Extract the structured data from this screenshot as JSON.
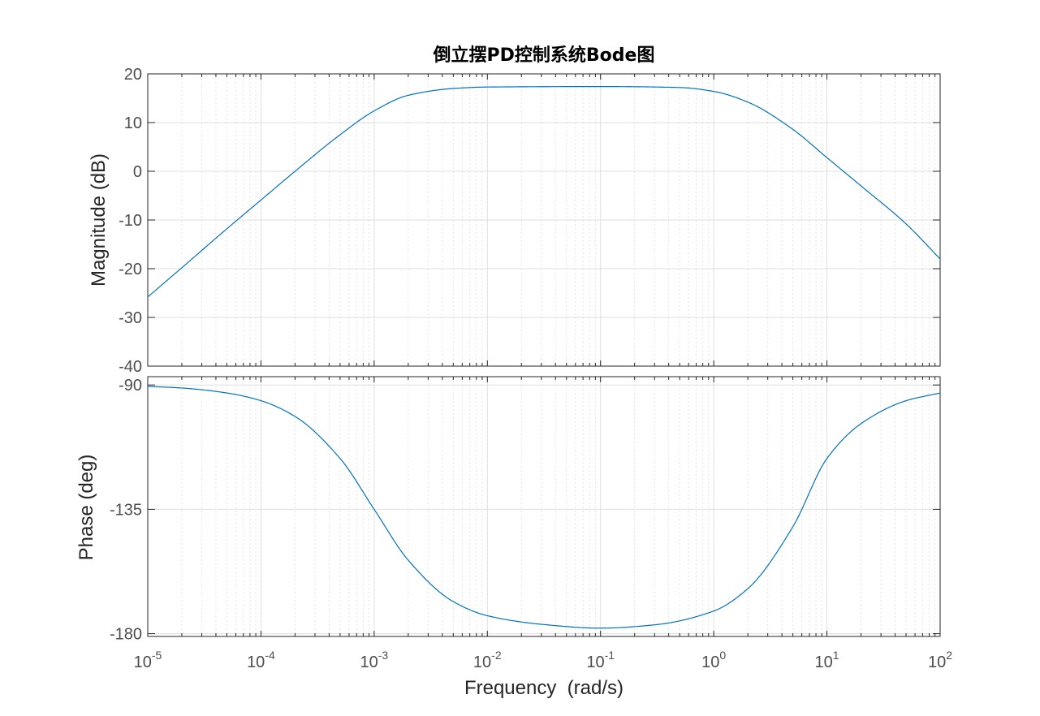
{
  "chart_data": [
    {
      "type": "line",
      "panel": "magnitude",
      "title": "倒立摆PD控制系统Bode图",
      "ylabel": "Magnitude (dB)",
      "xscale": "log",
      "xlim": [
        1e-05,
        100
      ],
      "ylim": [
        -40,
        20
      ],
      "yticks": [
        20,
        10,
        0,
        -10,
        -20,
        -30,
        -40
      ],
      "grid": true,
      "series": [
        {
          "x": [
            1e-05,
            2e-05,
            5e-05,
            0.0001,
            0.0002,
            0.0005,
            0.001,
            0.002,
            0.005,
            0.01,
            0.1,
            0.5,
            1,
            2,
            5,
            10,
            20,
            50,
            100
          ],
          "values": [
            -25.8,
            -19.8,
            -11.8,
            -5.9,
            0.0,
            7.5,
            12.4,
            15.6,
            17.0,
            17.3,
            17.4,
            17.2,
            16.4,
            14.2,
            8.6,
            2.8,
            -3.0,
            -10.8,
            -18.0
          ]
        }
      ]
    },
    {
      "type": "line",
      "panel": "phase",
      "xlabel": "Frequency  (rad/s)",
      "ylabel": "Phase (deg)",
      "xscale": "log",
      "xlim": [
        1e-05,
        100
      ],
      "ylim": [
        -181,
        -87
      ],
      "yticks": [
        -90,
        -135,
        -180
      ],
      "xticks": [
        {
          "base": "10",
          "exp": "-5"
        },
        {
          "base": "10",
          "exp": "-4"
        },
        {
          "base": "10",
          "exp": "-3"
        },
        {
          "base": "10",
          "exp": "-2"
        },
        {
          "base": "10",
          "exp": "-1"
        },
        {
          "base": "10",
          "exp": "0"
        },
        {
          "base": "10",
          "exp": "1"
        },
        {
          "base": "10",
          "exp": "2"
        }
      ],
      "grid": true,
      "series": [
        {
          "x": [
            1e-05,
            2e-05,
            5e-05,
            0.0001,
            0.0002,
            0.0005,
            0.001,
            0.002,
            0.005,
            0.01,
            0.03,
            0.1,
            0.3,
            1,
            2,
            5,
            10,
            20,
            50,
            100
          ],
          "values": [
            -90.5,
            -91.1,
            -92.9,
            -95.7,
            -101.4,
            -116.6,
            -135.0,
            -153.4,
            -168.4,
            -173.5,
            -176.6,
            -178.0,
            -176.8,
            -171.8,
            -163.7,
            -141.3,
            -116.6,
            -104.0,
            -95.7,
            -92.9
          ]
        }
      ]
    }
  ],
  "colors": {
    "line": "#0072bd",
    "axes": "#262626",
    "grid": "#dfdfdf",
    "tick_text": "#4d4d4d"
  }
}
